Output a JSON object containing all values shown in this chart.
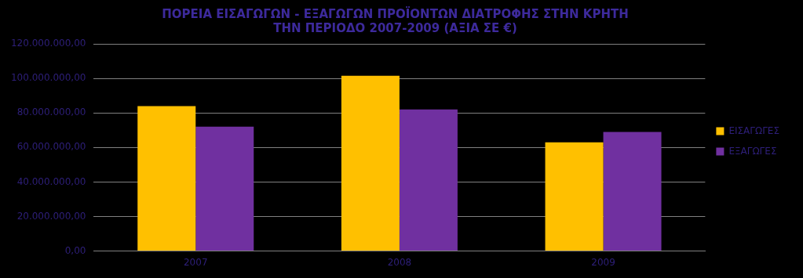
{
  "chart_data": {
    "type": "bar",
    "title": "ΠΟΡΕΙΑ ΕΙΣΑΓΩΓΩΝ - ΕΞΑΓΩΓΩΝ ΠΡΟΪΟΝΤΩΝ ΔΙΑΤΡΟΦΗΣ ΣΤΗΝ ΚΡΗΤΗ\nΤΗΝ ΠΕΡΙΟΔΟ 2007-2009 (ΑΞΙΑ ΣΕ €)",
    "categories": [
      "2007",
      "2008",
      "2009"
    ],
    "series": [
      {
        "name": "ΕΙΣΑΓΩΓΕΣ",
        "color": "#ffc000",
        "values": [
          84000000,
          101500000,
          63000000
        ]
      },
      {
        "name": "ΕΞΑΓΩΓΕΣ",
        "color": "#7030a0",
        "values": [
          72000000,
          82000000,
          69000000
        ]
      }
    ],
    "ylim": [
      0,
      120000000
    ],
    "yticks": [
      {
        "value": 0,
        "label": "0,00"
      },
      {
        "value": 20000000,
        "label": "20.000.000,00"
      },
      {
        "value": 40000000,
        "label": "40.000.000,00"
      },
      {
        "value": 60000000,
        "label": "60.000.000,00"
      },
      {
        "value": 80000000,
        "label": "80.000.000,00"
      },
      {
        "value": 100000000,
        "label": "100.000.000,00"
      },
      {
        "value": 120000000,
        "label": "120.000.000,00"
      }
    ],
    "grid": "y",
    "legend": "right"
  }
}
